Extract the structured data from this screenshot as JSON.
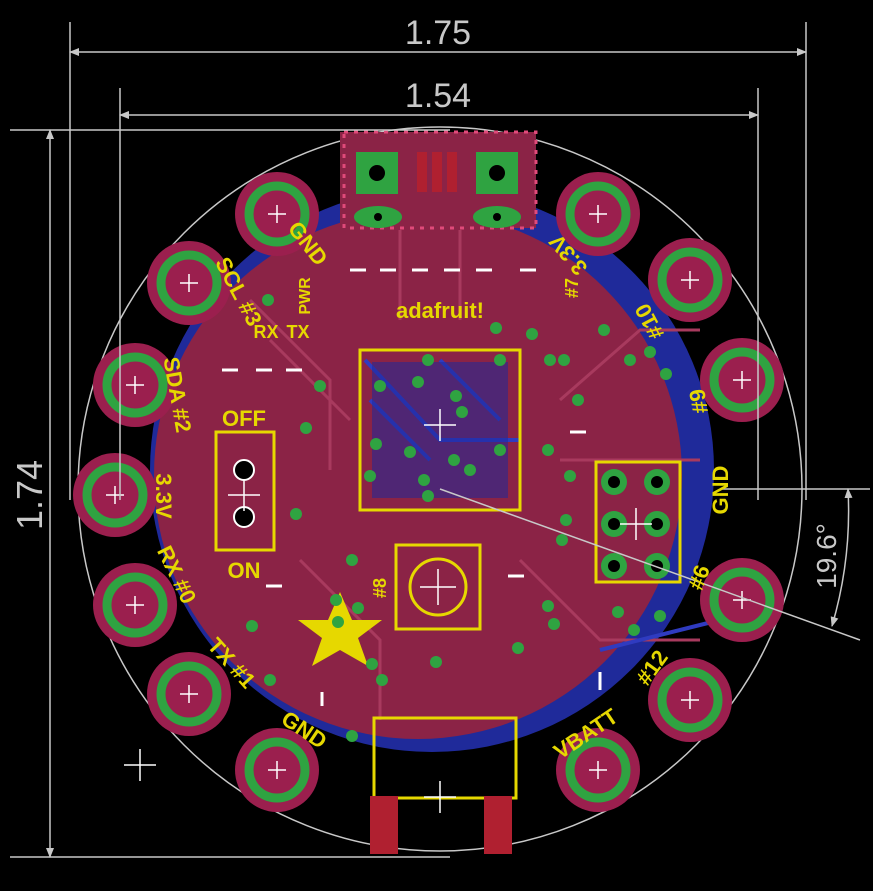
{
  "dimensions": {
    "width_outer": "1.75",
    "width_inner": "1.54",
    "height": "1.74",
    "angle": "19.6°"
  },
  "silkscreen": {
    "brand": "adafruit!",
    "gnd_top": "GND",
    "scl": "SCL #3",
    "sda": "SDA #2",
    "v33_left": "3.3V",
    "rx0": "RX #0",
    "tx1": "TX #1",
    "gnd_bottom": "GND",
    "vbatt": "VBATT",
    "pin12": "#12",
    "pin6": "#6",
    "gnd_right": "GND",
    "pin9": "#9",
    "pin10": "#10",
    "v33_right": "3.3V",
    "pin7": "#7",
    "pwr": "PWR",
    "rx": "RX",
    "tx": "TX",
    "off": "OFF",
    "on": "ON",
    "pin8": "#8"
  },
  "colors": {
    "background": "#000000",
    "pad_copper": "#9b1f4e",
    "top_copper": "#8b2346",
    "bottom_copper": "#1f2a9a",
    "silkscreen": "#e6d800",
    "via": "#2fa341",
    "dimension": "#c8c8c8"
  }
}
